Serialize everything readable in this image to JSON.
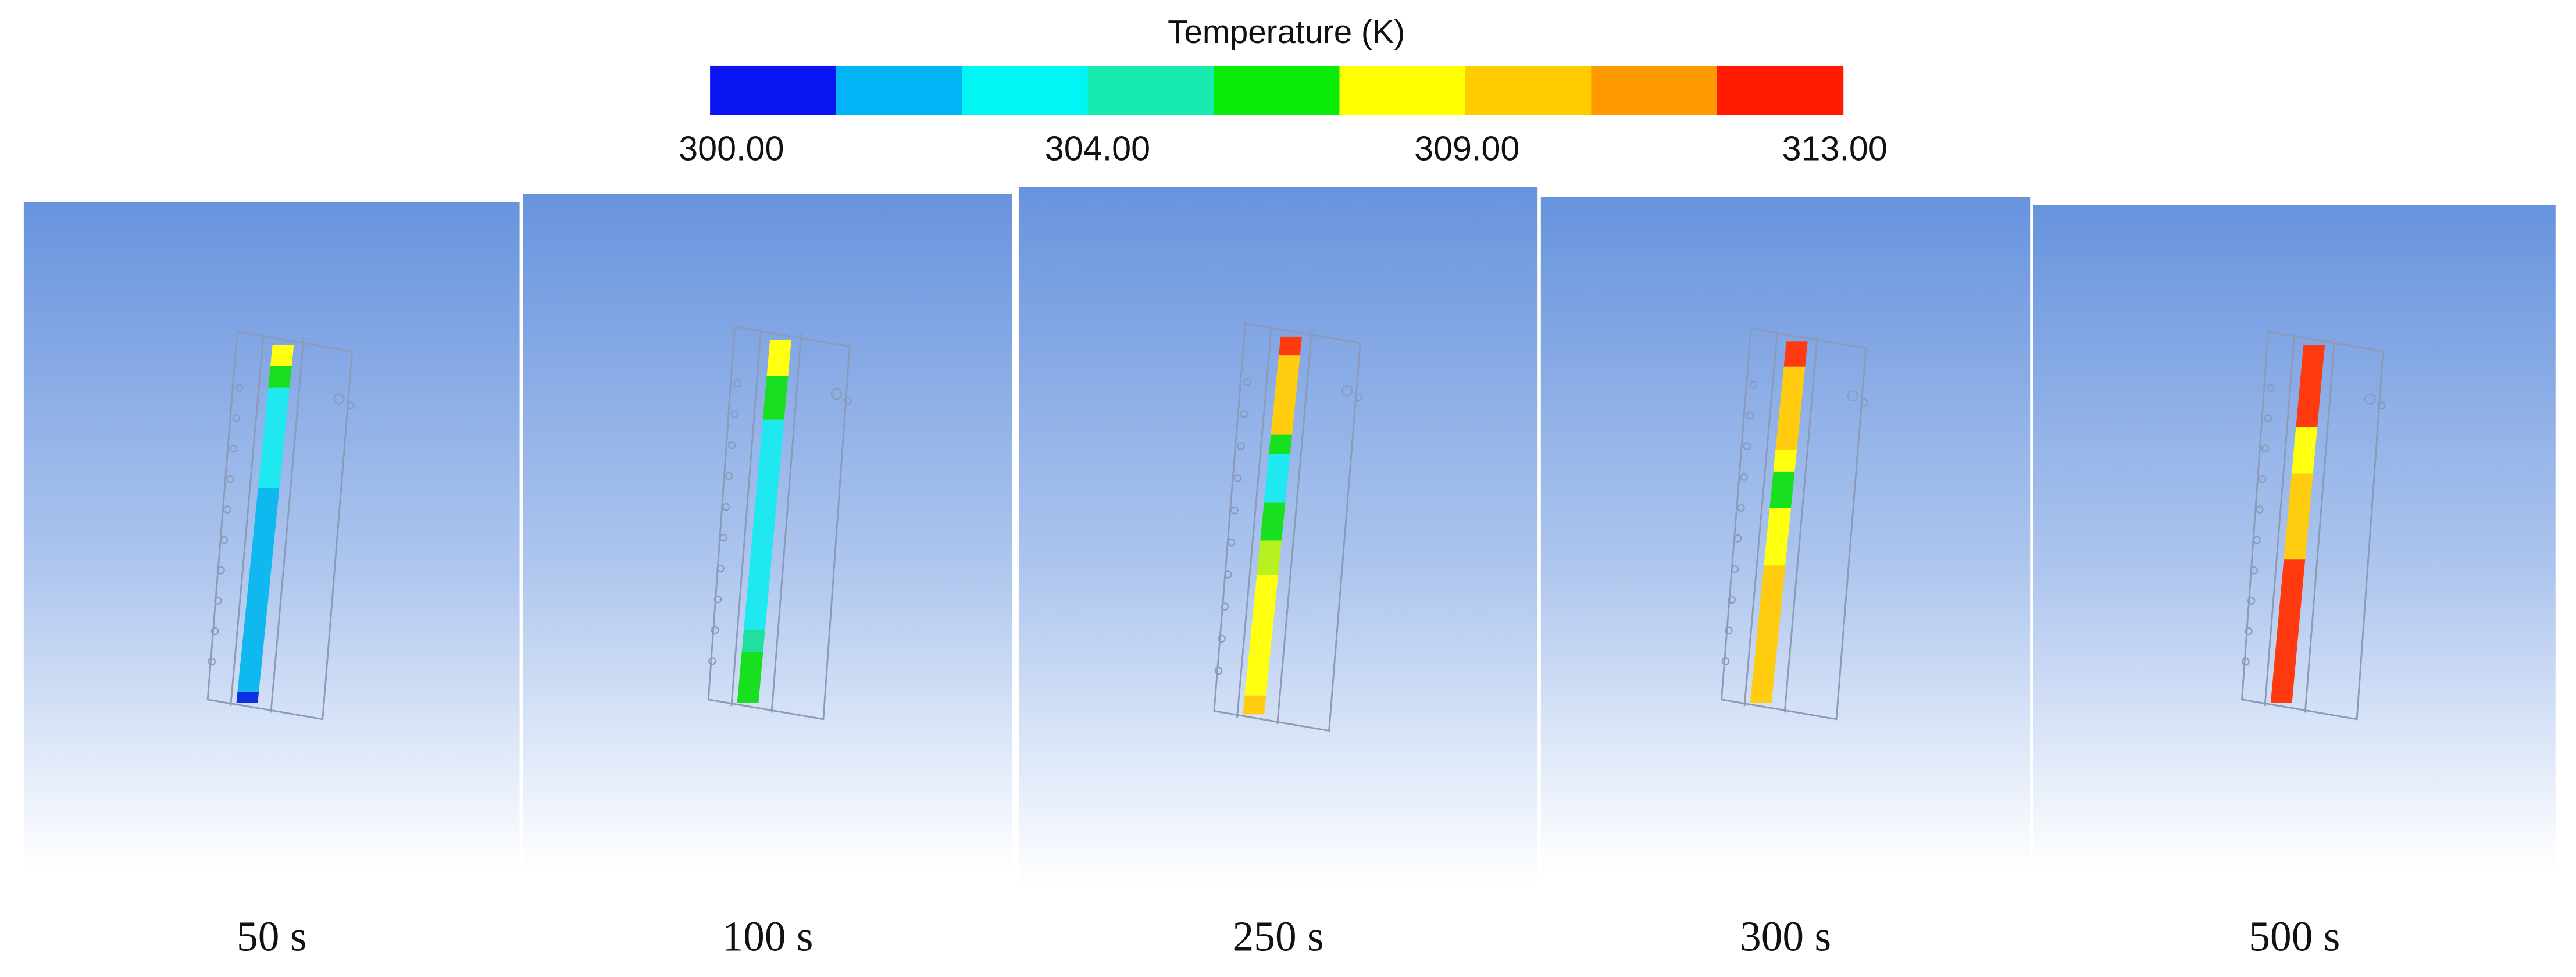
{
  "legend": {
    "title": "Temperature (K)",
    "colors": [
      "#0a14f0",
      "#00b4f5",
      "#00f5f5",
      "#18ebb0",
      "#0aeb0a",
      "#ffff00",
      "#ffcc00",
      "#ff9900",
      "#ff1a00"
    ],
    "ticks": [
      "300.00",
      "304.00",
      "309.00",
      "313.00"
    ]
  },
  "panels": [
    {
      "label": "50 s"
    },
    {
      "label": "100 s"
    },
    {
      "label": "250 s"
    },
    {
      "label": "300 s"
    },
    {
      "label": "500 s"
    }
  ]
}
